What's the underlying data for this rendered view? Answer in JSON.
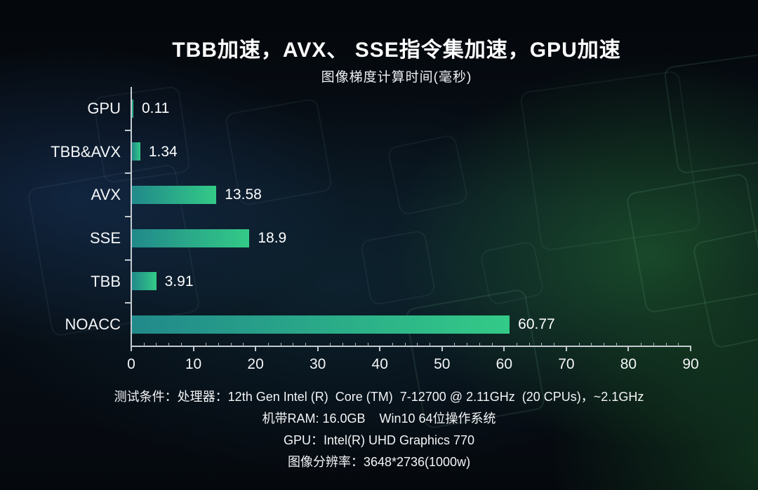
{
  "header": {
    "title": "TBB加速，AVX、 SSE指令集加速，GPU加速",
    "subtitle": "图像梯度计算时间(毫秒)"
  },
  "chart_data": {
    "type": "bar",
    "orientation": "horizontal",
    "title": "TBB加速，AVX、 SSE指令集加速，GPU加速",
    "subtitle": "图像梯度计算时间(毫秒)",
    "categories": [
      "GPU",
      "TBB&AVX",
      "AVX",
      "SSE",
      "TBB",
      "NOACC"
    ],
    "values": [
      0.11,
      1.34,
      13.58,
      18.9,
      3.91,
      60.77
    ],
    "value_labels": [
      "0.11",
      "1.34",
      "13.58",
      "18.9",
      "3.91",
      "60.77"
    ],
    "xlim": [
      0,
      90
    ],
    "x_major_ticks": [
      0,
      10,
      20,
      30,
      40,
      50,
      60,
      70,
      80,
      90
    ],
    "x_minor_step": 2,
    "grid": false,
    "legend": false,
    "bar_color_start": "#21898a",
    "bar_color_end": "#33ca87",
    "axis_color": "#c3cad0",
    "label_color": "#ffffff"
  },
  "footer": {
    "lines": [
      "测试条件：处理器：12th Gen Intel (R)  Core (TM)  7-12700 @ 2.11GHz  (20 CPUs)，~2.1GHz",
      "机带RAM: 16.0GB    Win10 64位操作系统",
      "GPU：Intel(R) UHD Graphics 770",
      "图像分辨率：3648*2736(1000w)"
    ]
  }
}
